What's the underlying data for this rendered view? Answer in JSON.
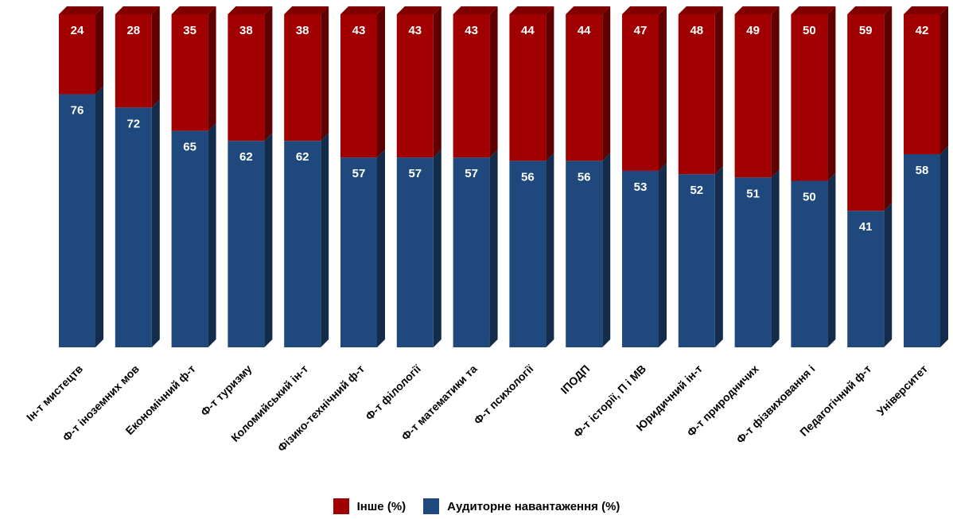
{
  "chart_data": {
    "type": "bar",
    "stacked": true,
    "percent_stacked": true,
    "categories": [
      "Ін-т мистецтв",
      "Ф-т іноземних мов",
      "Економічний ф-т",
      "Ф-т туризму",
      "Коломийський ін-т",
      "Фізико-технічний ф-т",
      "Ф-т філології",
      "Ф-т математики та",
      "Ф-т психології",
      "ІПОДП",
      "Ф-т історії, П і МВ",
      "Юридичний ін-т",
      "Ф-т природничих",
      "Ф-т фізвиховання і",
      "Педагогічний ф-т",
      "Університет"
    ],
    "series": [
      {
        "name": "Аудиторне навантаження (%)",
        "color": "#1f497d",
        "values": [
          76,
          72,
          65,
          62,
          62,
          57,
          57,
          57,
          56,
          56,
          53,
          52,
          51,
          50,
          41,
          58
        ]
      },
      {
        "name": "Інше (%)",
        "color": "#a00000",
        "values": [
          24,
          28,
          35,
          38,
          38,
          43,
          43,
          43,
          44,
          44,
          47,
          48,
          49,
          50,
          59,
          42
        ]
      }
    ],
    "ylim": [
      0,
      100
    ],
    "grid": false,
    "legend_position": "bottom",
    "data_labels": true,
    "style": "3d-column"
  },
  "legend": [
    {
      "label": "Інше (%)",
      "color": "#a00000"
    },
    {
      "label": "Аудиторне навантаження (%)",
      "color": "#1f497d"
    }
  ]
}
